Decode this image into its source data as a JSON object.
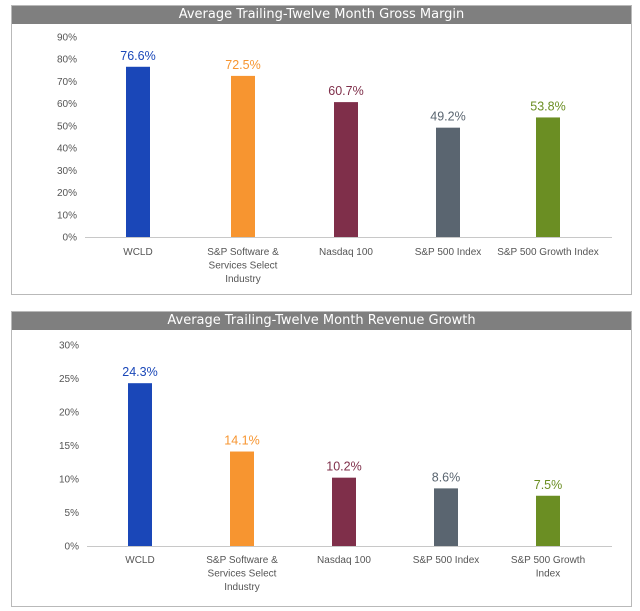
{
  "chart_data": [
    {
      "type": "bar",
      "title": "Average Trailing-Twelve Month Gross Margin",
      "categories": [
        [
          "WCLD"
        ],
        [
          "S&P Software &",
          "Services Select",
          "Industry"
        ],
        [
          "Nasdaq 100"
        ],
        [
          "S&P 500 Index"
        ],
        [
          "S&P 500 Growth Index"
        ]
      ],
      "values": [
        76.6,
        72.5,
        60.7,
        49.2,
        53.8
      ],
      "data_labels": [
        "76.6%",
        "72.5%",
        "60.7%",
        "49.2%",
        "53.8%"
      ],
      "yticks": [
        "0%",
        "10%",
        "20%",
        "30%",
        "40%",
        "50%",
        "60%",
        "70%",
        "80%",
        "90%"
      ],
      "ylim": [
        0,
        90
      ],
      "colors": [
        "#1a47b8",
        "#f79530",
        "#7f2f4a",
        "#5a6570",
        "#6b8e23"
      ],
      "grid": false
    },
    {
      "type": "bar",
      "title": "Average Trailing-Twelve Month Revenue Growth",
      "categories": [
        [
          "WCLD"
        ],
        [
          "S&P Software &",
          "Services Select",
          "Industry"
        ],
        [
          "Nasdaq 100"
        ],
        [
          "S&P 500 Index"
        ],
        [
          "S&P 500 Growth",
          "Index"
        ]
      ],
      "values": [
        24.3,
        14.1,
        10.2,
        8.6,
        7.5
      ],
      "data_labels": [
        "24.3%",
        "14.1%",
        "10.2%",
        "8.6%",
        "7.5%"
      ],
      "yticks": [
        "0%",
        "5%",
        "10%",
        "15%",
        "20%",
        "25%",
        "30%"
      ],
      "ylim": [
        0,
        30
      ],
      "colors": [
        "#1a47b8",
        "#f79530",
        "#7f2f4a",
        "#5a6570",
        "#6b8e23"
      ],
      "grid": false
    }
  ]
}
